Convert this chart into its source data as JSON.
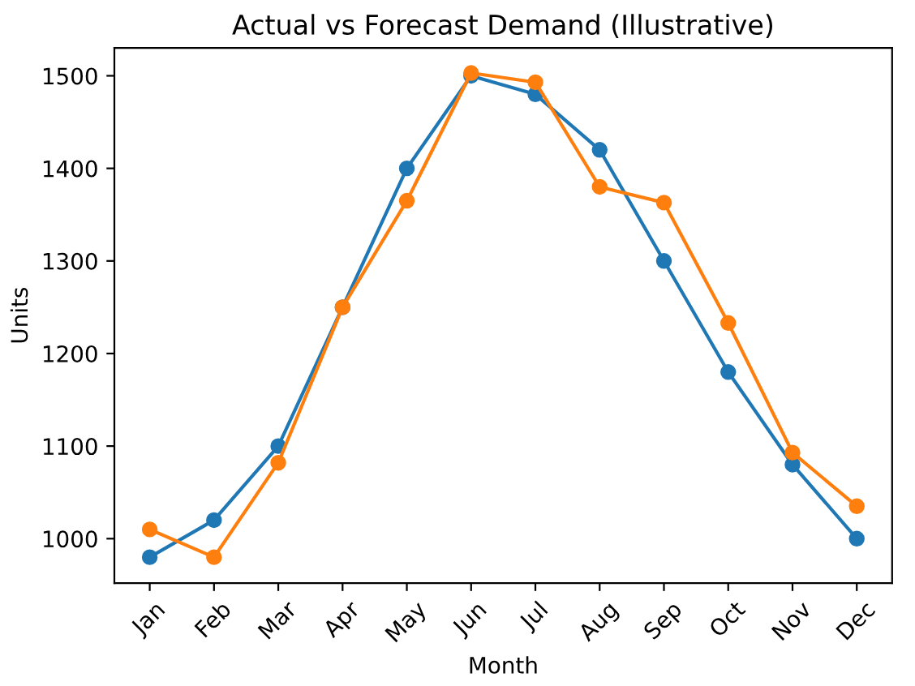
{
  "chart_data": {
    "type": "line",
    "title": "Actual vs Forecast Demand (Illustrative)",
    "xlabel": "Month",
    "ylabel": "Units",
    "categories": [
      "Jan",
      "Feb",
      "Mar",
      "Apr",
      "May",
      "Jun",
      "Jul",
      "Aug",
      "Sep",
      "Oct",
      "Nov",
      "Dec"
    ],
    "series": [
      {
        "color": "#1f77b4",
        "values": [
          980,
          1020,
          1100,
          1250,
          1400,
          1500,
          1480,
          1420,
          1300,
          1180,
          1080,
          1000
        ]
      },
      {
        "color": "#ff7f0e",
        "values": [
          1010,
          980,
          1082,
          1250,
          1365,
          1503,
          1493,
          1380,
          1363,
          1233,
          1093,
          1035
        ]
      }
    ],
    "ylim": [
      952,
      1530
    ],
    "yticks": [
      1000,
      1100,
      1200,
      1300,
      1400,
      1500
    ],
    "marker": "circle",
    "line_style": "solid",
    "grid": false,
    "legend": false
  }
}
